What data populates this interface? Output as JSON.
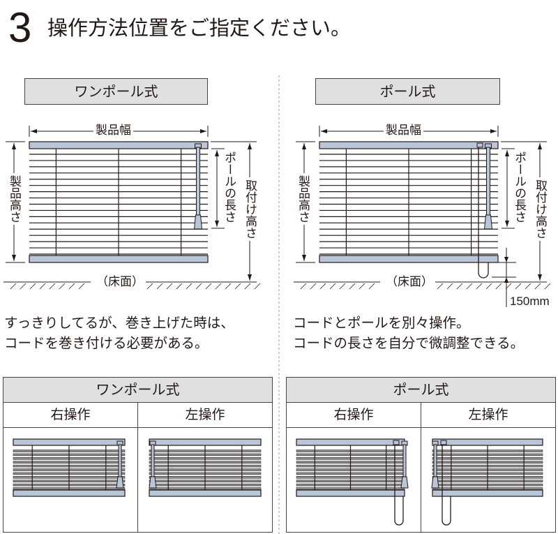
{
  "header": {
    "step_number": "3",
    "title": "操作方法位置をご指定ください。"
  },
  "left": {
    "label": "ワンポール式",
    "width_label": "製品幅",
    "height_label": "製品高さ",
    "pole_label": "ポールの長さ",
    "mount_label": "取付け高さ",
    "floor_label": "（床面）",
    "caption": [
      "すっきりしてるが、巻き上げた時は、",
      "コードを巻き付ける必要がある。"
    ]
  },
  "right": {
    "label": "ポール式",
    "width_label": "製品幅",
    "height_label": "製品高さ",
    "pole_label": "ポールの長さ",
    "mount_label": "取付け高さ",
    "floor_label": "（床面）",
    "clearance_label": "150mm",
    "caption": [
      "コードとポールを別々操作。",
      "コードの長さを自分で微調整できる。"
    ]
  },
  "tables": [
    {
      "title": "ワンポール式",
      "columns": [
        "右操作",
        "左操作"
      ]
    },
    {
      "title": "ポール式",
      "columns": [
        "右操作",
        "左操作"
      ]
    }
  ],
  "colors": {
    "rail": "#b9c5d9",
    "line": "#231815",
    "header_bg": "#e0e0e0"
  }
}
